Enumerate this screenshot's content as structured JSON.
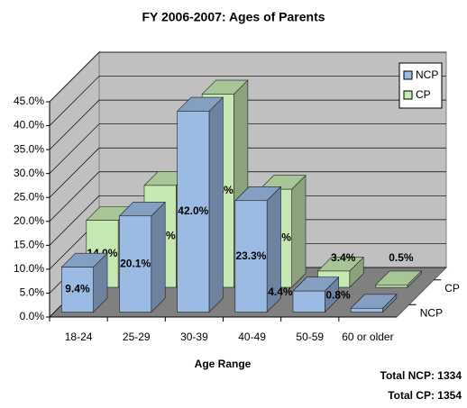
{
  "chart_data": {
    "type": "bar3d",
    "title": "FY 2006-2007: Ages of Parents",
    "x_label": "Age Range",
    "categories": [
      "18-24",
      "25-29",
      "30-39",
      "40-49",
      "50-59",
      "60 or older"
    ],
    "series": [
      {
        "name": "NCP",
        "color": "#9cbbe4",
        "values": [
          9.4,
          20.1,
          42.0,
          23.3,
          4.4,
          0.8
        ],
        "value_labels": [
          "9.4%",
          "20.1%",
          "42.0%",
          "23.3%",
          "4.4%",
          "0.8%"
        ]
      },
      {
        "name": "CP",
        "color": "#c6e8b2",
        "values": [
          14.0,
          21.3,
          40.4,
          20.5,
          3.4,
          0.5
        ],
        "value_labels": [
          "14.0%",
          "21.3%",
          "40.4%",
          "20.5%",
          "3.4%",
          "0.5%"
        ]
      }
    ],
    "ylim": [
      0,
      45
    ],
    "yticks": [
      {
        "value": 0,
        "label": "0.0%"
      },
      {
        "value": 5,
        "label": "5.0%"
      },
      {
        "value": 10,
        "label": "10.0%"
      },
      {
        "value": 15,
        "label": "15.0%"
      },
      {
        "value": 20,
        "label": "20.0%"
      },
      {
        "value": 25,
        "label": "25.0%"
      },
      {
        "value": 30,
        "label": "30.0%"
      },
      {
        "value": 35,
        "label": "35.0%"
      },
      {
        "value": 40,
        "label": "40.0%"
      },
      {
        "value": 45,
        "label": "45.0%"
      }
    ],
    "grid": true,
    "legend_position": "top-right",
    "annotations": [
      "Total NCP: 1334",
      "Total CP: 1354"
    ]
  }
}
